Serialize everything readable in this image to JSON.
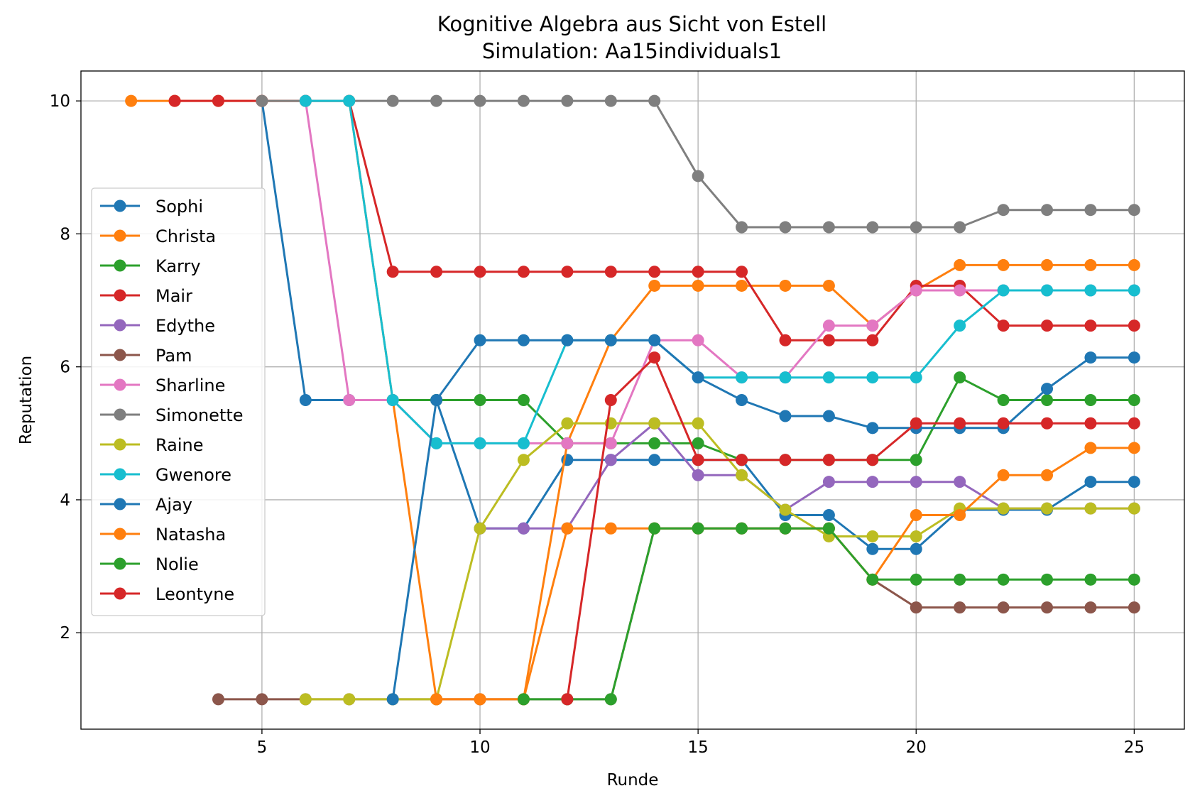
{
  "chart_data": {
    "type": "line",
    "title": "Kognitive Algebra aus Sicht von Estell",
    "subtitle": "Simulation: Aa15individuals1",
    "xlabel": "Runde",
    "ylabel": "Reputation",
    "xlim": [
      0.85,
      26.15
    ],
    "ylim": [
      0.55,
      10.45
    ],
    "xticks": [
      5,
      10,
      15,
      20,
      25
    ],
    "yticks": [
      2,
      4,
      6,
      8,
      10
    ],
    "grid": true,
    "legend_position": "center-left",
    "series": [
      {
        "name": "Sophi",
        "color": "#1f77b4",
        "points": [
          [
            5,
            10
          ],
          [
            6,
            5.5
          ],
          [
            7,
            5.5
          ],
          [
            8,
            5.5
          ],
          [
            9,
            5.5
          ],
          [
            10,
            3.57
          ],
          [
            11,
            3.57
          ],
          [
            12,
            4.6
          ],
          [
            13,
            4.6
          ],
          [
            14,
            4.6
          ],
          [
            15,
            4.6
          ],
          [
            16,
            4.6
          ],
          [
            17,
            3.77
          ],
          [
            18,
            3.77
          ],
          [
            19,
            3.26
          ],
          [
            20,
            3.26
          ],
          [
            21,
            3.85
          ],
          [
            22,
            3.85
          ],
          [
            23,
            3.85
          ],
          [
            24,
            4.27
          ],
          [
            25,
            4.27
          ]
        ]
      },
      {
        "name": "Christa",
        "color": "#ff7f0e",
        "points": [
          [
            2,
            10
          ],
          [
            3,
            10
          ],
          [
            4,
            10
          ],
          [
            5,
            10
          ],
          [
            6,
            10
          ],
          [
            7,
            10
          ],
          [
            8,
            5.5
          ],
          [
            9,
            1
          ],
          [
            10,
            1
          ],
          [
            11,
            1
          ],
          [
            12,
            4.85
          ],
          [
            13,
            6.4
          ],
          [
            14,
            7.22
          ],
          [
            15,
            7.22
          ],
          [
            16,
            7.22
          ],
          [
            17,
            7.22
          ],
          [
            18,
            7.22
          ],
          [
            19,
            6.62
          ],
          [
            20,
            7.15
          ],
          [
            21,
            7.53
          ],
          [
            22,
            7.53
          ],
          [
            23,
            7.53
          ],
          [
            24,
            7.53
          ],
          [
            25,
            7.53
          ]
        ]
      },
      {
        "name": "Karry",
        "color": "#2ca02c",
        "points": [
          [
            8,
            5.5
          ],
          [
            9,
            5.5
          ],
          [
            10,
            5.5
          ],
          [
            11,
            5.5
          ],
          [
            12,
            4.85
          ],
          [
            13,
            4.85
          ],
          [
            14,
            4.85
          ],
          [
            15,
            4.85
          ],
          [
            16,
            4.6
          ],
          [
            17,
            4.6
          ],
          [
            18,
            4.6
          ],
          [
            19,
            4.6
          ],
          [
            20,
            4.6
          ],
          [
            21,
            5.84
          ],
          [
            22,
            5.5
          ],
          [
            23,
            5.5
          ],
          [
            24,
            5.5
          ],
          [
            25,
            5.5
          ]
        ]
      },
      {
        "name": "Mair",
        "color": "#d62728",
        "points": [
          [
            3,
            10
          ],
          [
            4,
            10
          ],
          [
            5,
            10
          ],
          [
            6,
            10
          ],
          [
            7,
            10
          ],
          [
            8,
            7.43
          ],
          [
            9,
            7.43
          ],
          [
            10,
            7.43
          ],
          [
            11,
            7.43
          ],
          [
            12,
            7.43
          ],
          [
            13,
            7.43
          ],
          [
            14,
            7.43
          ],
          [
            15,
            7.43
          ],
          [
            16,
            7.43
          ],
          [
            17,
            6.4
          ],
          [
            18,
            6.4
          ],
          [
            19,
            6.4
          ],
          [
            20,
            7.22
          ],
          [
            21,
            7.22
          ],
          [
            22,
            6.62
          ],
          [
            23,
            6.62
          ],
          [
            24,
            6.62
          ],
          [
            25,
            6.62
          ]
        ]
      },
      {
        "name": "Edythe",
        "color": "#9467bd",
        "points": [
          [
            10,
            3.57
          ],
          [
            11,
            3.57
          ],
          [
            12,
            3.57
          ],
          [
            13,
            4.6
          ],
          [
            14,
            5.15
          ],
          [
            15,
            4.37
          ],
          [
            16,
            4.37
          ],
          [
            17,
            3.85
          ],
          [
            18,
            4.27
          ],
          [
            19,
            4.27
          ],
          [
            20,
            4.27
          ],
          [
            21,
            4.27
          ],
          [
            22,
            3.87
          ],
          [
            23,
            3.87
          ],
          [
            24,
            3.87
          ],
          [
            25,
            3.87
          ]
        ]
      },
      {
        "name": "Pam",
        "color": "#8c564b",
        "points": [
          [
            4,
            1
          ],
          [
            5,
            1
          ],
          [
            6,
            1
          ],
          [
            7,
            1
          ],
          [
            8,
            1
          ],
          [
            9,
            1
          ],
          [
            10,
            1
          ],
          [
            11,
            1
          ],
          [
            12,
            1
          ],
          [
            13,
            1
          ],
          [
            14,
            3.57
          ],
          [
            15,
            3.57
          ],
          [
            16,
            3.57
          ],
          [
            17,
            3.57
          ],
          [
            18,
            3.57
          ],
          [
            19,
            2.8
          ],
          [
            20,
            2.38
          ],
          [
            21,
            2.38
          ],
          [
            22,
            2.38
          ],
          [
            23,
            2.38
          ],
          [
            24,
            2.38
          ],
          [
            25,
            2.38
          ]
        ]
      },
      {
        "name": "Sharline",
        "color": "#e377c2",
        "points": [
          [
            6,
            10
          ],
          [
            7,
            5.5
          ],
          [
            8,
            5.5
          ],
          [
            9,
            4.85
          ],
          [
            10,
            4.85
          ],
          [
            11,
            4.85
          ],
          [
            12,
            4.85
          ],
          [
            13,
            4.85
          ],
          [
            14,
            6.4
          ],
          [
            15,
            6.4
          ],
          [
            16,
            5.84
          ],
          [
            17,
            5.84
          ],
          [
            18,
            6.62
          ],
          [
            19,
            6.62
          ],
          [
            20,
            7.15
          ],
          [
            21,
            7.15
          ],
          [
            22,
            7.15
          ],
          [
            23,
            7.15
          ],
          [
            24,
            7.15
          ],
          [
            25,
            7.15
          ]
        ]
      },
      {
        "name": "Simonette",
        "color": "#7f7f7f",
        "points": [
          [
            5,
            10
          ],
          [
            6,
            10
          ],
          [
            7,
            10
          ],
          [
            8,
            10
          ],
          [
            9,
            10
          ],
          [
            10,
            10
          ],
          [
            11,
            10
          ],
          [
            12,
            10
          ],
          [
            13,
            10
          ],
          [
            14,
            10
          ],
          [
            15,
            8.87
          ],
          [
            16,
            8.1
          ],
          [
            17,
            8.1
          ],
          [
            18,
            8.1
          ],
          [
            19,
            8.1
          ],
          [
            20,
            8.1
          ],
          [
            21,
            8.1
          ],
          [
            22,
            8.36
          ],
          [
            23,
            8.36
          ],
          [
            24,
            8.36
          ],
          [
            25,
            8.36
          ]
        ]
      },
      {
        "name": "Raine",
        "color": "#bcbd22",
        "points": [
          [
            6,
            1
          ],
          [
            7,
            1
          ],
          [
            8,
            1
          ],
          [
            9,
            1
          ],
          [
            10,
            3.57
          ],
          [
            11,
            4.6
          ],
          [
            12,
            5.15
          ],
          [
            13,
            5.15
          ],
          [
            14,
            5.15
          ],
          [
            15,
            5.15
          ],
          [
            16,
            4.37
          ],
          [
            17,
            3.85
          ],
          [
            18,
            3.45
          ],
          [
            19,
            3.45
          ],
          [
            20,
            3.45
          ],
          [
            21,
            3.87
          ],
          [
            22,
            3.87
          ],
          [
            23,
            3.87
          ],
          [
            24,
            3.87
          ],
          [
            25,
            3.87
          ]
        ]
      },
      {
        "name": "Gwenore",
        "color": "#17becf",
        "points": [
          [
            6,
            10
          ],
          [
            7,
            10
          ],
          [
            8,
            5.5
          ],
          [
            9,
            4.85
          ],
          [
            10,
            4.85
          ],
          [
            11,
            4.85
          ],
          [
            12,
            6.4
          ],
          [
            13,
            6.4
          ],
          [
            14,
            6.4
          ],
          [
            15,
            5.84
          ],
          [
            16,
            5.84
          ],
          [
            17,
            5.84
          ],
          [
            18,
            5.84
          ],
          [
            19,
            5.84
          ],
          [
            20,
            5.84
          ],
          [
            21,
            6.62
          ],
          [
            22,
            7.15
          ],
          [
            23,
            7.15
          ],
          [
            24,
            7.15
          ],
          [
            25,
            7.15
          ]
        ]
      },
      {
        "name": "Ajay",
        "color": "#1f77b4",
        "points": [
          [
            8,
            1
          ],
          [
            9,
            5.5
          ],
          [
            10,
            6.4
          ],
          [
            11,
            6.4
          ],
          [
            12,
            6.4
          ],
          [
            13,
            6.4
          ],
          [
            14,
            6.4
          ],
          [
            15,
            5.84
          ],
          [
            16,
            5.5
          ],
          [
            17,
            5.26
          ],
          [
            18,
            5.26
          ],
          [
            19,
            5.08
          ],
          [
            20,
            5.08
          ],
          [
            21,
            5.08
          ],
          [
            22,
            5.08
          ],
          [
            23,
            5.67
          ],
          [
            24,
            6.14
          ],
          [
            25,
            6.14
          ]
        ]
      },
      {
        "name": "Natasha",
        "color": "#ff7f0e",
        "points": [
          [
            9,
            1
          ],
          [
            10,
            1
          ],
          [
            11,
            1
          ],
          [
            12,
            3.57
          ],
          [
            13,
            3.57
          ],
          [
            14,
            3.57
          ],
          [
            15,
            3.57
          ],
          [
            16,
            3.57
          ],
          [
            17,
            3.57
          ],
          [
            18,
            3.57
          ],
          [
            19,
            2.8
          ],
          [
            20,
            3.77
          ],
          [
            21,
            3.77
          ],
          [
            22,
            4.37
          ],
          [
            23,
            4.37
          ],
          [
            24,
            4.78
          ],
          [
            25,
            4.78
          ]
        ]
      },
      {
        "name": "Nolie",
        "color": "#2ca02c",
        "points": [
          [
            11,
            1
          ],
          [
            12,
            1
          ],
          [
            13,
            1
          ],
          [
            14,
            3.57
          ],
          [
            15,
            3.57
          ],
          [
            16,
            3.57
          ],
          [
            17,
            3.57
          ],
          [
            18,
            3.57
          ],
          [
            19,
            2.8
          ],
          [
            20,
            2.8
          ],
          [
            21,
            2.8
          ],
          [
            22,
            2.8
          ],
          [
            23,
            2.8
          ],
          [
            24,
            2.8
          ],
          [
            25,
            2.8
          ]
        ]
      },
      {
        "name": "Leontyne",
        "color": "#d62728",
        "points": [
          [
            12,
            1
          ],
          [
            13,
            5.5
          ],
          [
            14,
            6.14
          ],
          [
            15,
            4.6
          ],
          [
            16,
            4.6
          ],
          [
            17,
            4.6
          ],
          [
            18,
            4.6
          ],
          [
            19,
            4.6
          ],
          [
            20,
            5.15
          ],
          [
            21,
            5.15
          ],
          [
            22,
            5.15
          ],
          [
            23,
            5.15
          ],
          [
            24,
            5.15
          ],
          [
            25,
            5.15
          ]
        ]
      }
    ]
  }
}
